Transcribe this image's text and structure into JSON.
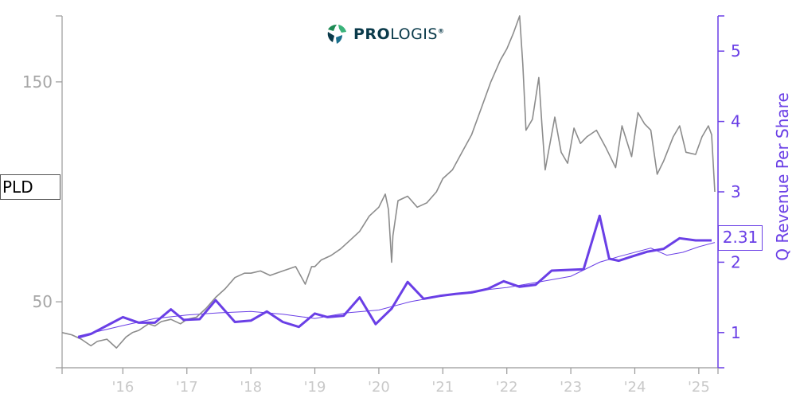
{
  "logo": {
    "text_bold": "PRO",
    "text_regular": "LOGIS",
    "reg": "®"
  },
  "ticker": "PLD",
  "last_value_label": "2.31",
  "colors": {
    "price": "#8c8c8c",
    "revenue": "#6a3fe6",
    "trend": "#6a3fe6",
    "axis": "#999999"
  },
  "chart_data": {
    "type": "line",
    "title": "",
    "xlabel": "",
    "ylabel_left": "",
    "ylabel_right": "Q Revenue Per Share",
    "x_ticks": [
      "'16",
      "'17",
      "'18",
      "'19",
      "'20",
      "'21",
      "'22",
      "'23",
      "'24",
      "'25"
    ],
    "y_left_ticks": [
      50,
      150
    ],
    "y_left_lim": [
      20,
      180
    ],
    "y_right_ticks": [
      1,
      2,
      3,
      4,
      5
    ],
    "y_right_lim": [
      0.5,
      5.5
    ],
    "x_lim": [
      2015.05,
      2025.3
    ],
    "grid": false,
    "series": [
      {
        "name": "PLD",
        "axis": "left",
        "x": [
          2015.05,
          2015.2,
          2015.35,
          2015.5,
          2015.6,
          2015.75,
          2015.9,
          2016.05,
          2016.15,
          2016.25,
          2016.4,
          2016.5,
          2016.6,
          2016.75,
          2016.9,
          2017.0,
          2017.15,
          2017.3,
          2017.45,
          2017.6,
          2017.75,
          2017.9,
          2018.0,
          2018.15,
          2018.3,
          2018.5,
          2018.7,
          2018.85,
          2018.95,
          2019.0,
          2019.1,
          2019.25,
          2019.4,
          2019.55,
          2019.7,
          2019.85,
          2020.0,
          2020.1,
          2020.15,
          2020.2,
          2020.22,
          2020.3,
          2020.45,
          2020.6,
          2020.75,
          2020.9,
          2021.0,
          2021.15,
          2021.3,
          2021.45,
          2021.6,
          2021.75,
          2021.9,
          2022.0,
          2022.1,
          2022.2,
          2022.25,
          2022.3,
          2022.4,
          2022.5,
          2022.55,
          2022.6,
          2022.75,
          2022.85,
          2022.95,
          2023.05,
          2023.15,
          2023.25,
          2023.4,
          2023.55,
          2023.7,
          2023.8,
          2023.95,
          2024.05,
          2024.15,
          2024.25,
          2024.35,
          2024.45,
          2024.6,
          2024.7,
          2024.8,
          2024.95,
          2025.05,
          2025.15,
          2025.2,
          2025.25
        ],
        "values": [
          36,
          35,
          33,
          30,
          32,
          33,
          29,
          34,
          36,
          37,
          40,
          39,
          41,
          42,
          40,
          42,
          43,
          47,
          52,
          56,
          61,
          63,
          63,
          64,
          62,
          64,
          66,
          58,
          66,
          66,
          69,
          71,
          74,
          78,
          82,
          89,
          93,
          99,
          92,
          68,
          80,
          96,
          98,
          93,
          95,
          100,
          106,
          110,
          118,
          126,
          138,
          150,
          160,
          165,
          172,
          180,
          158,
          128,
          133,
          152,
          130,
          110,
          134,
          118,
          113,
          129,
          122,
          125,
          128,
          120,
          111,
          130,
          116,
          136,
          131,
          128,
          108,
          114,
          125,
          130,
          118,
          117,
          125,
          130,
          126,
          100
        ]
      },
      {
        "name": "Q Revenue Per Share",
        "axis": "right",
        "x": [
          2015.3,
          2015.5,
          2015.75,
          2016.0,
          2016.25,
          2016.5,
          2016.75,
          2016.95,
          2017.2,
          2017.45,
          2017.75,
          2018.0,
          2018.25,
          2018.5,
          2018.75,
          2019.0,
          2019.2,
          2019.45,
          2019.7,
          2019.95,
          2020.2,
          2020.45,
          2020.7,
          2020.95,
          2021.2,
          2021.45,
          2021.7,
          2021.95,
          2022.2,
          2022.45,
          2022.7,
          2022.95,
          2023.2,
          2023.45,
          2023.6,
          2023.75,
          2023.95,
          2024.2,
          2024.45,
          2024.7,
          2024.95,
          2025.2
        ],
        "values": [
          0.93,
          0.98,
          1.1,
          1.22,
          1.14,
          1.14,
          1.33,
          1.18,
          1.19,
          1.46,
          1.15,
          1.17,
          1.3,
          1.15,
          1.08,
          1.27,
          1.22,
          1.24,
          1.5,
          1.12,
          1.34,
          1.72,
          1.48,
          1.52,
          1.55,
          1.57,
          1.62,
          1.73,
          1.65,
          1.68,
          1.88,
          1.89,
          1.9,
          2.66,
          2.05,
          2.02,
          2.08,
          2.15,
          2.19,
          2.34,
          2.31,
          2.31
        ]
      },
      {
        "name": "",
        "axis": "right",
        "x": [
          2015.3,
          2016.0,
          2016.5,
          2017.0,
          2017.5,
          2018.0,
          2018.5,
          2019.0,
          2019.5,
          2020.0,
          2020.5,
          2021.0,
          2021.5,
          2022.0,
          2022.5,
          2023.0,
          2023.45,
          2023.75,
          2024.25,
          2024.5,
          2024.75,
          2025.0,
          2025.25
        ],
        "values": [
          0.95,
          1.1,
          1.2,
          1.25,
          1.28,
          1.3,
          1.26,
          1.2,
          1.28,
          1.32,
          1.44,
          1.52,
          1.59,
          1.64,
          1.72,
          1.8,
          2.0,
          2.08,
          2.2,
          2.1,
          2.14,
          2.22,
          2.28
        ]
      }
    ]
  }
}
